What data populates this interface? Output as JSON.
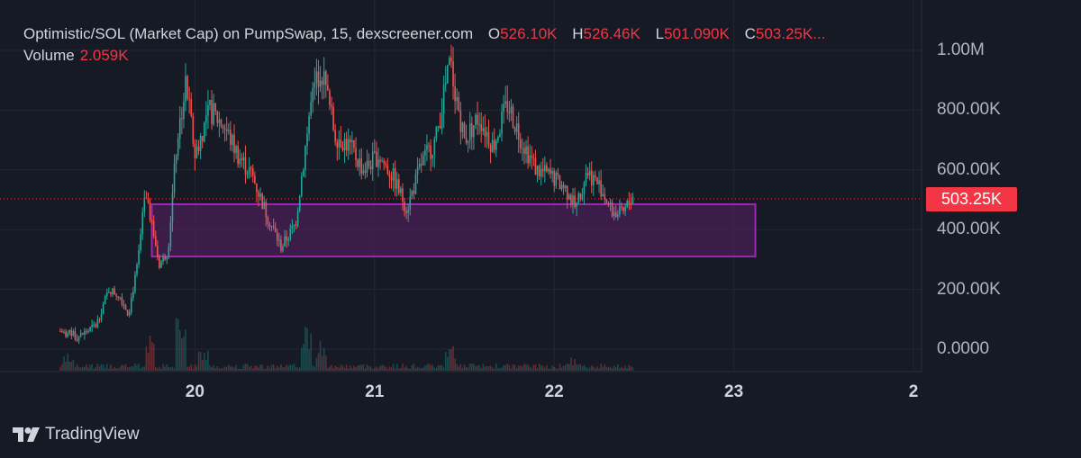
{
  "header": {
    "title": "Optimistic/SOL (Market Cap) on PumpSwap, 15, dexscreener.com",
    "open_label": "O",
    "open": "526.10K",
    "high_label": "H",
    "high": "526.46K",
    "low_label": "L",
    "low": "501.090K",
    "close_label": "C",
    "close": "503.25K...",
    "volume_label": "Volume",
    "volume": "2.059K"
  },
  "current_price_label": "503.25K",
  "brand": "TradingView",
  "colors": {
    "up": "#26a69a",
    "down": "#ef5350",
    "zone_border": "#9c27b0",
    "zone_fill": "#4a1f55",
    "price_line": "#f23645"
  },
  "chart_data": {
    "type": "candlestick",
    "title": "",
    "xlabel": "",
    "ylabel": "",
    "ylim": [
      0,
      1000000
    ],
    "y_ticks": [
      "0.0000",
      "200.00K",
      "400.00K",
      "600.00K",
      "800.00K",
      "1.00M"
    ],
    "y_tick_values": [
      0,
      200000,
      400000,
      600000,
      800000,
      1000000
    ],
    "x_ticks": [
      "20",
      "21",
      "22",
      "23",
      "2"
    ],
    "x_tick_values": [
      20,
      21,
      22,
      23,
      24
    ],
    "xlim": [
      18.97,
      24.02
    ],
    "current_price": 503250,
    "zone": {
      "x_from": 19.76,
      "x_to": 23.12,
      "y_from": 310000,
      "y_to": 485000
    },
    "price_path": [
      [
        19.25,
        60000
      ],
      [
        19.35,
        40000
      ],
      [
        19.45,
        80000
      ],
      [
        19.52,
        200000
      ],
      [
        19.58,
        180000
      ],
      [
        19.63,
        120000
      ],
      [
        19.68,
        280000
      ],
      [
        19.72,
        500000
      ],
      [
        19.76,
        430000
      ],
      [
        19.8,
        280000
      ],
      [
        19.85,
        330000
      ],
      [
        19.9,
        700000
      ],
      [
        19.95,
        890000
      ],
      [
        20.0,
        650000
      ],
      [
        20.08,
        800000
      ],
      [
        20.16,
        750000
      ],
      [
        20.24,
        650000
      ],
      [
        20.32,
        580000
      ],
      [
        20.4,
        450000
      ],
      [
        20.48,
        340000
      ],
      [
        20.56,
        420000
      ],
      [
        20.64,
        800000
      ],
      [
        20.7,
        950000
      ],
      [
        20.78,
        720000
      ],
      [
        20.86,
        680000
      ],
      [
        20.94,
        600000
      ],
      [
        21.02,
        650000
      ],
      [
        21.1,
        580000
      ],
      [
        21.18,
        470000
      ],
      [
        21.26,
        620000
      ],
      [
        21.34,
        700000
      ],
      [
        21.42,
        960000
      ],
      [
        21.5,
        700000
      ],
      [
        21.58,
        780000
      ],
      [
        21.66,
        680000
      ],
      [
        21.74,
        820000
      ],
      [
        21.82,
        700000
      ],
      [
        21.9,
        600000
      ],
      [
        21.98,
        580000
      ],
      [
        22.06,
        540000
      ],
      [
        22.12,
        470000
      ],
      [
        22.18,
        600000
      ],
      [
        22.26,
        540000
      ],
      [
        22.32,
        460000
      ],
      [
        22.38,
        450000
      ],
      [
        22.44,
        520000
      ]
    ],
    "volume_peaks": [
      [
        19.3,
        20
      ],
      [
        19.75,
        40
      ],
      [
        19.92,
        60
      ],
      [
        20.05,
        30
      ],
      [
        20.62,
        50
      ],
      [
        20.7,
        35
      ],
      [
        21.42,
        28
      ],
      [
        22.1,
        15
      ]
    ]
  }
}
